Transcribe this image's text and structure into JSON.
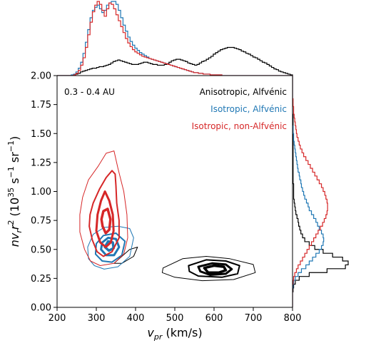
{
  "chart_data": {
    "type": "joint-contour-with-marginal-histograms",
    "annotation": "0.3 - 0.4 AU",
    "xlabel": "v_pr (km/s)",
    "ylabel": "n v_r r^2 (10^35 s^-1 sr^-1)",
    "xlim": [
      200,
      800
    ],
    "ylim": [
      0.0,
      2.0
    ],
    "xticks": [
      "200",
      "300",
      "400",
      "500",
      "600",
      "700",
      "800"
    ],
    "yticks": [
      "0.00",
      "0.25",
      "0.50",
      "0.75",
      "1.00",
      "1.25",
      "1.50",
      "1.75",
      "2.00"
    ],
    "legend_placement": "top-right",
    "series": [
      {
        "name": "Anisotropic, Alfvénic",
        "color": "#000000",
        "contours": [
          {
            "level": 1,
            "points": [
              [
                470,
                0.34
              ],
              [
                520,
                0.42
              ],
              [
                580,
                0.44
              ],
              [
                640,
                0.42
              ],
              [
                700,
                0.37
              ],
              [
                705,
                0.3
              ],
              [
                650,
                0.24
              ],
              [
                570,
                0.23
              ],
              [
                500,
                0.26
              ],
              [
                468,
                0.3
              ]
            ]
          },
          {
            "level": 2,
            "points": [
              [
                535,
                0.36
              ],
              [
                580,
                0.41
              ],
              [
                630,
                0.4
              ],
              [
                665,
                0.36
              ],
              [
                660,
                0.29
              ],
              [
                620,
                0.26
              ],
              [
                560,
                0.27
              ],
              [
                537,
                0.31
              ]
            ]
          },
          {
            "level": 3,
            "points": [
              [
                560,
                0.35
              ],
              [
                595,
                0.38
              ],
              [
                630,
                0.37
              ],
              [
                645,
                0.33
              ],
              [
                630,
                0.29
              ],
              [
                590,
                0.28
              ],
              [
                565,
                0.31
              ]
            ]
          },
          {
            "level": 4,
            "points": [
              [
                575,
                0.34
              ],
              [
                600,
                0.36
              ],
              [
                625,
                0.35
              ],
              [
                630,
                0.32
              ],
              [
                612,
                0.3
              ],
              [
                585,
                0.3
              ]
            ]
          },
          {
            "level": 5,
            "points": [
              [
                345,
                0.38
              ],
              [
                385,
                0.5
              ],
              [
                405,
                0.52
              ],
              [
                395,
                0.44
              ],
              [
                365,
                0.38
              ]
            ]
          }
        ],
        "marginal_x": [
          0,
          0,
          0,
          0,
          0,
          0,
          0,
          0.01,
          0.02,
          0.03,
          0.05,
          0.06,
          0.07,
          0.08,
          0.09,
          0.1,
          0.1,
          0.11,
          0.12,
          0.12,
          0.13,
          0.14,
          0.15,
          0.17,
          0.19,
          0.2,
          0.21,
          0.2,
          0.19,
          0.18,
          0.17,
          0.16,
          0.15,
          0.15,
          0.15,
          0.16,
          0.17,
          0.18,
          0.18,
          0.17,
          0.16,
          0.15,
          0.15,
          0.14,
          0.14,
          0.14,
          0.15,
          0.16,
          0.18,
          0.2,
          0.21,
          0.22,
          0.22,
          0.21,
          0.2,
          0.19,
          0.17,
          0.16,
          0.15,
          0.14,
          0.15,
          0.17,
          0.19,
          0.2,
          0.22,
          0.24,
          0.26,
          0.29,
          0.31,
          0.33,
          0.35,
          0.36,
          0.37,
          0.38,
          0.38,
          0.38,
          0.37,
          0.36,
          0.35,
          0.33,
          0.32,
          0.3,
          0.29,
          0.27,
          0.25,
          0.24,
          0.22,
          0.2,
          0.18,
          0.17,
          0.15,
          0.13,
          0.11,
          0.09,
          0.08,
          0.06,
          0.05,
          0.04,
          0.03,
          0.02,
          0.01
        ],
        "marginal_y": [
          0,
          0,
          0,
          0,
          0.01,
          0.02,
          0.05,
          0.12,
          0.3,
          0.62,
          0.95,
          1.0,
          0.9,
          0.72,
          0.55,
          0.4,
          0.3,
          0.22,
          0.18,
          0.15,
          0.13,
          0.11,
          0.1,
          0.08,
          0.06,
          0.05,
          0.04,
          0.03,
          0.02,
          0.02,
          0.02,
          0.02,
          0.01,
          0.01,
          0.01,
          0.01,
          0.01,
          0.01,
          0.01,
          0.01,
          0.01,
          0.01,
          0.01,
          0.01,
          0.01,
          0.01,
          0.01,
          0.01,
          0.01,
          0.01,
          0,
          0,
          0,
          0,
          0,
          0,
          0,
          0,
          0,
          0
        ]
      },
      {
        "name": "Isotropic, Alfvénic",
        "color": "#1f77b4",
        "contours": [
          {
            "level": 1,
            "points": [
              [
                280,
                0.42
              ],
              [
                295,
                0.36
              ],
              [
                320,
                0.33
              ],
              [
                355,
                0.35
              ],
              [
                385,
                0.44
              ],
              [
                395,
                0.6
              ],
              [
                385,
                0.68
              ],
              [
                355,
                0.7
              ],
              [
                320,
                0.69
              ],
              [
                292,
                0.63
              ],
              [
                278,
                0.52
              ]
            ]
          },
          {
            "level": 2,
            "points": [
              [
                298,
                0.46
              ],
              [
                315,
                0.4
              ],
              [
                340,
                0.39
              ],
              [
                365,
                0.45
              ],
              [
                373,
                0.57
              ],
              [
                350,
                0.64
              ],
              [
                318,
                0.62
              ],
              [
                300,
                0.55
              ]
            ]
          },
          {
            "level": 3,
            "points": [
              [
                312,
                0.5
              ],
              [
                325,
                0.45
              ],
              [
                345,
                0.45
              ],
              [
                358,
                0.52
              ],
              [
                350,
                0.59
              ],
              [
                330,
                0.6
              ],
              [
                315,
                0.56
              ]
            ]
          },
          {
            "level": 4,
            "points": [
              [
                322,
                0.52
              ],
              [
                332,
                0.49
              ],
              [
                344,
                0.51
              ],
              [
                342,
                0.56
              ],
              [
                330,
                0.57
              ]
            ]
          }
        ],
        "marginal_x": [
          0,
          0,
          0,
          0,
          0,
          0,
          0.01,
          0.02,
          0.05,
          0.1,
          0.18,
          0.3,
          0.45,
          0.62,
          0.78,
          0.88,
          0.92,
          0.95,
          0.9,
          0.85,
          0.88,
          0.95,
          0.98,
          1.0,
          1.0,
          0.96,
          0.88,
          0.78,
          0.68,
          0.6,
          0.52,
          0.46,
          0.41,
          0.37,
          0.34,
          0.31,
          0.29,
          0.27,
          0.25,
          0.23,
          0.22,
          0.21,
          0.2,
          0.19,
          0.18,
          0.17,
          0.16,
          0.15,
          0.14,
          0.13,
          0.12,
          0.11,
          0.1,
          0.09,
          0.08,
          0.07,
          0.06,
          0.05,
          0.04,
          0.04,
          0.03,
          0.03,
          0.02,
          0.02,
          0.02,
          0.01,
          0.01,
          0.01,
          0.01,
          0.01,
          0,
          0,
          0,
          0,
          0,
          0,
          0,
          0,
          0,
          0,
          0,
          0,
          0,
          0,
          0,
          0,
          0,
          0,
          0,
          0,
          0,
          0,
          0,
          0,
          0,
          0,
          0,
          0,
          0,
          0
        ],
        "marginal_y": [
          0,
          0,
          0,
          0,
          0,
          0.01,
          0.02,
          0.05,
          0.1,
          0.16,
          0.24,
          0.3,
          0.36,
          0.42,
          0.48,
          0.52,
          0.55,
          0.56,
          0.55,
          0.52,
          0.48,
          0.45,
          0.42,
          0.38,
          0.34,
          0.3,
          0.28,
          0.25,
          0.22,
          0.2,
          0.18,
          0.16,
          0.15,
          0.13,
          0.12,
          0.1,
          0.09,
          0.08,
          0.07,
          0.06,
          0.05,
          0.04,
          0.03,
          0.02,
          0.02,
          0.01,
          0.01,
          0,
          0,
          0,
          0,
          0,
          0,
          0,
          0,
          0,
          0,
          0,
          0,
          0
        ]
      },
      {
        "name": "Isotropic, non-Alfvénic",
        "color": "#d62728",
        "contours": [
          {
            "level": 1,
            "points": [
              [
                258,
                0.65
              ],
              [
                270,
                0.5
              ],
              [
                285,
                0.4
              ],
              [
                310,
                0.36
              ],
              [
                345,
                0.38
              ],
              [
                370,
                0.46
              ],
              [
                380,
                0.6
              ],
              [
                378,
                0.8
              ],
              [
                370,
                1.0
              ],
              [
                355,
                1.2
              ],
              [
                345,
                1.35
              ],
              [
                325,
                1.33
              ],
              [
                305,
                1.22
              ],
              [
                280,
                1.1
              ],
              [
                265,
                0.95
              ],
              [
                258,
                0.8
              ]
            ]
          },
          {
            "level": 2,
            "points": [
              [
                282,
                0.7
              ],
              [
                290,
                0.58
              ],
              [
                302,
                0.48
              ],
              [
                318,
                0.44
              ],
              [
                340,
                0.48
              ],
              [
                358,
                0.6
              ],
              [
                358,
                0.75
              ],
              [
                352,
                0.9
              ],
              [
                350,
                1.05
              ],
              [
                348,
                1.15
              ],
              [
                340,
                1.18
              ],
              [
                325,
                1.12
              ],
              [
                308,
                1.02
              ],
              [
                292,
                0.9
              ],
              [
                284,
                0.8
              ]
            ]
          },
          {
            "level": 3,
            "points": [
              [
                300,
                0.66
              ],
              [
                310,
                0.56
              ],
              [
                324,
                0.52
              ],
              [
                337,
                0.56
              ],
              [
                344,
                0.66
              ],
              [
                342,
                0.8
              ],
              [
                333,
                0.92
              ],
              [
                322,
                1.0
              ],
              [
                312,
                0.92
              ],
              [
                303,
                0.8
              ]
            ]
          },
          {
            "level": 4,
            "points": [
              [
                316,
                0.7
              ],
              [
                324,
                0.64
              ],
              [
                333,
                0.67
              ],
              [
                336,
                0.76
              ],
              [
                329,
                0.85
              ],
              [
                318,
                0.83
              ],
              [
                313,
                0.76
              ]
            ]
          }
        ],
        "marginal_x": [
          0,
          0,
          0,
          0,
          0,
          0,
          0,
          0.01,
          0.03,
          0.07,
          0.14,
          0.24,
          0.38,
          0.55,
          0.72,
          0.86,
          0.95,
          1.0,
          0.96,
          0.88,
          0.8,
          0.9,
          0.98,
          0.96,
          0.9,
          0.82,
          0.74,
          0.66,
          0.58,
          0.5,
          0.44,
          0.39,
          0.35,
          0.32,
          0.3,
          0.28,
          0.26,
          0.25,
          0.24,
          0.23,
          0.22,
          0.21,
          0.2,
          0.19,
          0.18,
          0.17,
          0.16,
          0.15,
          0.14,
          0.13,
          0.12,
          0.11,
          0.1,
          0.09,
          0.08,
          0.07,
          0.06,
          0.05,
          0.04,
          0.04,
          0.03,
          0.03,
          0.02,
          0.02,
          0.02,
          0.01,
          0.01,
          0.01,
          0.01,
          0.01,
          0,
          0,
          0,
          0,
          0,
          0,
          0,
          0,
          0,
          0,
          0,
          0,
          0,
          0,
          0,
          0,
          0,
          0,
          0,
          0,
          0,
          0,
          0,
          0,
          0,
          0,
          0,
          0,
          0,
          0
        ],
        "marginal_y": [
          0,
          0,
          0,
          0,
          0,
          0,
          0.01,
          0.02,
          0.04,
          0.07,
          0.1,
          0.14,
          0.18,
          0.22,
          0.26,
          0.3,
          0.34,
          0.38,
          0.42,
          0.46,
          0.5,
          0.54,
          0.57,
          0.6,
          0.62,
          0.63,
          0.63,
          0.62,
          0.6,
          0.58,
          0.55,
          0.52,
          0.48,
          0.44,
          0.4,
          0.36,
          0.32,
          0.28,
          0.24,
          0.2,
          0.17,
          0.14,
          0.12,
          0.1,
          0.08,
          0.07,
          0.06,
          0.05,
          0.04,
          0.03,
          0.02,
          0.02,
          0.01,
          0.01,
          0,
          0,
          0,
          0,
          0,
          0
        ]
      }
    ]
  }
}
